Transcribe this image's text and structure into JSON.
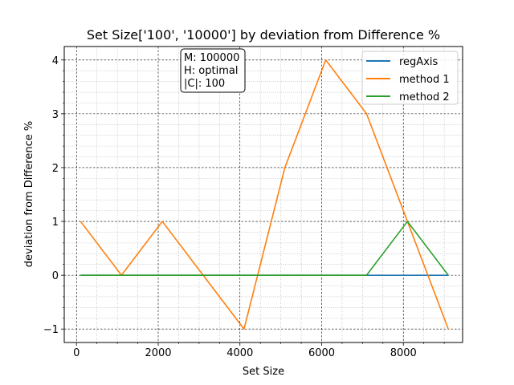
{
  "chart_data": {
    "type": "line",
    "title": "Set Size['100', '10000'] by deviation from Difference %",
    "xlabel": "Set Size",
    "ylabel": "deviation from Difference %",
    "xlim": [
      -300,
      9450
    ],
    "ylim": [
      -1.25,
      4.25
    ],
    "x_ticks": [
      0,
      2000,
      4000,
      6000,
      8000
    ],
    "x_tick_labels": [
      "0",
      "2000",
      "4000",
      "6000",
      "8000"
    ],
    "y_ticks": [
      -1,
      0,
      1,
      2,
      3,
      4
    ],
    "y_tick_labels": [
      "−1",
      "0",
      "1",
      "2",
      "3",
      "4"
    ],
    "x_minor_ticks": [
      500,
      1000,
      1500,
      2500,
      3000,
      3500,
      4500,
      5000,
      5500,
      6500,
      7000,
      7500,
      8500,
      9000
    ],
    "y_minor_ticks": [
      -0.8,
      -0.6,
      -0.4,
      -0.2,
      0.2,
      0.4,
      0.6,
      0.8,
      1.2,
      1.4,
      1.6,
      1.8,
      2.2,
      2.4,
      2.6,
      2.8,
      3.2,
      3.4,
      3.6,
      3.8
    ],
    "grid": true,
    "legend_position": "top-right",
    "x": [
      100,
      1100,
      2100,
      3100,
      4100,
      5100,
      6100,
      7100,
      8100,
      9100
    ],
    "series": [
      {
        "name": "regAxis",
        "color": "#1f77b4",
        "values": [
          0,
          0,
          0,
          0,
          0,
          0,
          0,
          0,
          0,
          0
        ]
      },
      {
        "name": "method 1",
        "color": "#ff7f0e",
        "values": [
          1,
          0,
          1,
          0,
          -1,
          2,
          4,
          3,
          1,
          -1
        ]
      },
      {
        "name": "method 2",
        "color": "#2ca02c",
        "values": [
          0,
          0,
          0,
          0,
          0,
          0,
          0,
          0,
          1,
          0
        ]
      }
    ],
    "info_box": [
      "M: 100000",
      "H: optimal",
      "|C|: 100"
    ]
  }
}
